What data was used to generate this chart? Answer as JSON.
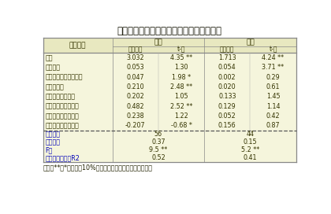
{
  "title": "表３　住民満足度の地域差に対する影響度",
  "note": "（注）**，*は１％，10%の水準で有意であることを示す。",
  "bg_color": "#f5f5dc",
  "header_bg": "#e8e8c0",
  "border_color": "#888888",
  "text_color": "#333300",
  "blue_text": "#0000bb",
  "col_groups": [
    "山口",
    "山形"
  ],
  "col_sub": [
    "推定係数",
    "t-値",
    "推定係数",
    "t-値"
  ],
  "row_labels": [
    "切片",
    "経済指標",
    "ソーシャルキャピタル",
    "活性化指標",
    "　社　街並み評価",
    "　会　道路整備評価",
    "　資　環境基盤評価",
    "　本　安全基盤評価"
  ],
  "data": [
    [
      "3.032",
      "4.35 **",
      "1.713",
      "4.24 **"
    ],
    [
      "0.053",
      "1.30",
      "0.054",
      "3.71 **"
    ],
    [
      "0.047",
      "1.98 *",
      "0.002",
      "0.29"
    ],
    [
      "0.210",
      "2.48 **",
      "0.020",
      "0.61"
    ],
    [
      "0.202",
      "1.05",
      "0.133",
      "1.45"
    ],
    [
      "0.482",
      "2.52 **",
      "0.129",
      "1.14"
    ],
    [
      "0.238",
      "1.22",
      "0.052",
      "0.42"
    ],
    [
      "-0.207",
      "-0.68 *",
      "0.156",
      "0.87"
    ]
  ],
  "footer_labels": [
    "データ数",
    "標準誤差",
    "F値",
    "自由度調整済みR2"
  ],
  "footer_data": [
    [
      "56",
      "44"
    ],
    [
      "0.37",
      "0.15"
    ],
    [
      "9.5 **",
      "5.2 **"
    ],
    [
      "0.52",
      "0.41"
    ]
  ]
}
